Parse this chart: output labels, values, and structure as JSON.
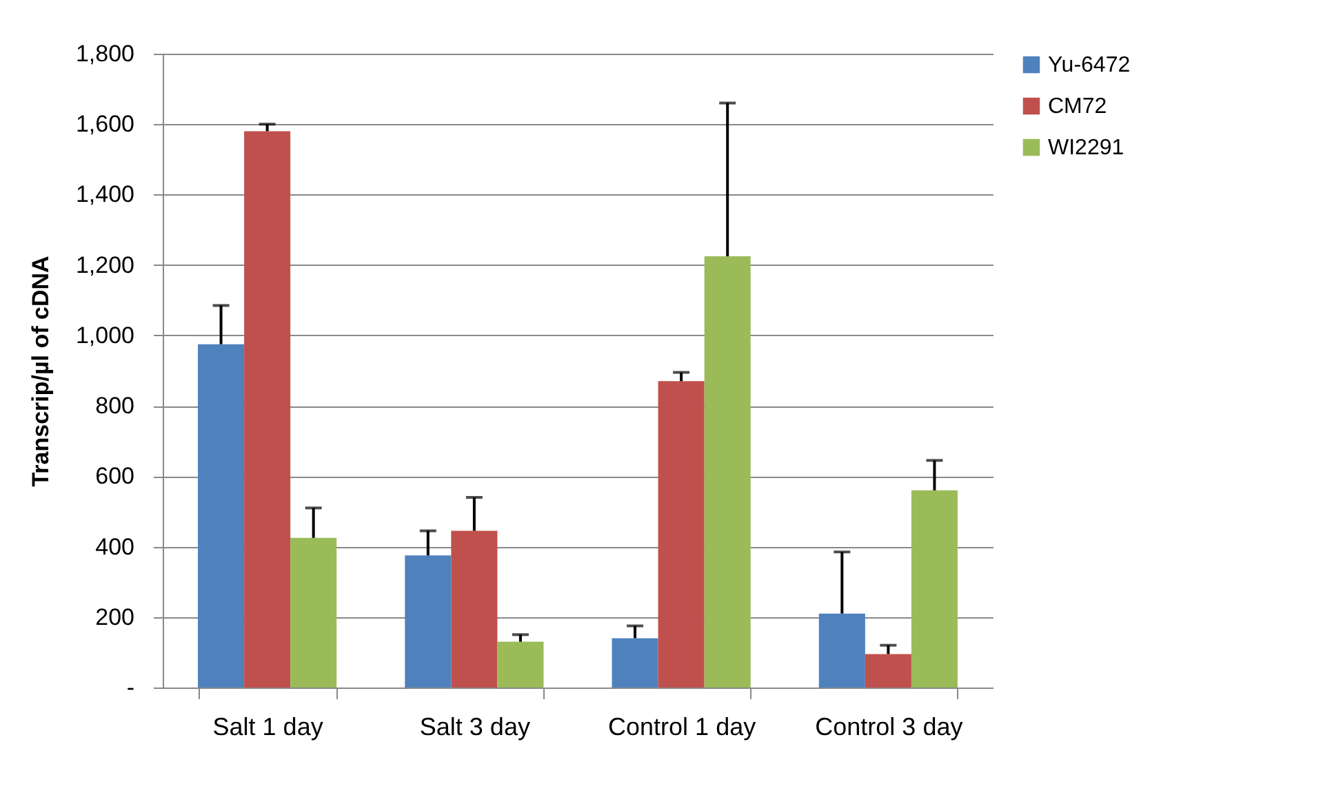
{
  "chart_data": {
    "type": "bar",
    "ylabel": "Transcrip/µl of cDNA",
    "categories": [
      "Salt 1 day",
      "Salt 3 day",
      "Control 1 day",
      "Control 3 day"
    ],
    "series": [
      {
        "name": "Yu-6472",
        "color": "#4f81bd",
        "values": [
          975,
          375,
          140,
          210
        ],
        "errors": [
          [
            975,
            1085
          ],
          [
            375,
            445
          ],
          [
            140,
            175
          ],
          [
            210,
            385
          ]
        ]
      },
      {
        "name": "CM72",
        "color": "#c0504d",
        "values": [
          1580,
          445,
          870,
          95
        ],
        "errors": [
          [
            1580,
            1600
          ],
          [
            445,
            540
          ],
          [
            870,
            895
          ],
          [
            95,
            120
          ]
        ]
      },
      {
        "name": "WI2291",
        "color": "#9bbb59",
        "values": [
          425,
          130,
          1225,
          560
        ],
        "errors": [
          [
            425,
            510
          ],
          [
            130,
            150
          ],
          [
            1225,
            1660
          ],
          [
            560,
            645
          ]
        ]
      }
    ],
    "ylim": [
      0,
      1800
    ],
    "yticks": [
      {
        "value": 0,
        "label": "-"
      },
      200,
      400,
      600,
      800,
      {
        "value": 1000,
        "label": "1,000"
      },
      {
        "value": 1200,
        "label": "1,200"
      },
      {
        "value": 1400,
        "label": "1,400"
      },
      {
        "value": 1600,
        "label": "1,600"
      },
      {
        "value": 1800,
        "label": "1,800"
      }
    ],
    "grid": "y",
    "legend": "right"
  }
}
